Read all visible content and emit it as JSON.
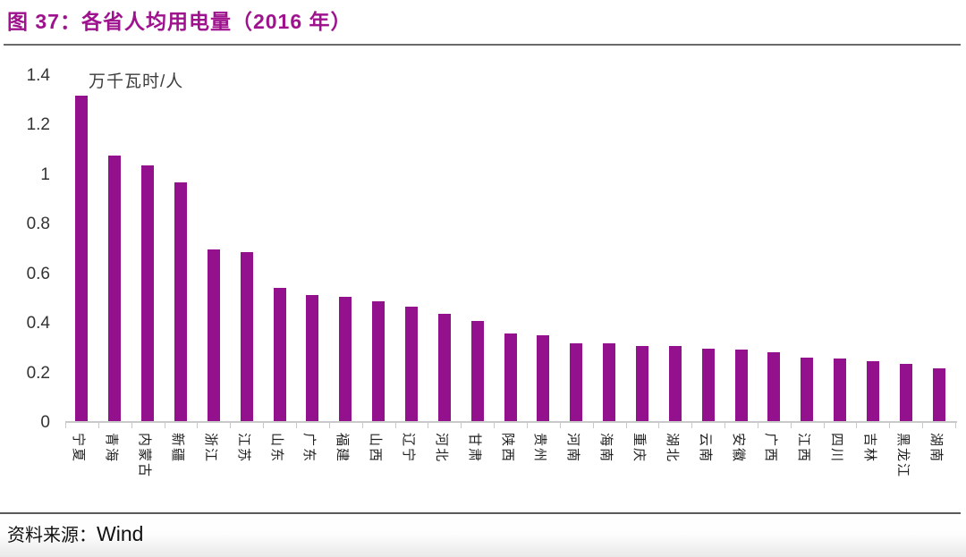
{
  "header": {
    "title": "图 37：各省人均用电量（2016 年）"
  },
  "footer": {
    "source_prefix": "资料来源：",
    "source_value": "Wind"
  },
  "chart_data": {
    "type": "bar",
    "title": "各省人均用电量（2016 年）",
    "unit_label": "万千瓦时/人",
    "categories": [
      "宁夏",
      "青海",
      "内蒙古",
      "新疆",
      "浙江",
      "江苏",
      "山东",
      "广东",
      "福建",
      "山西",
      "辽宁",
      "河北",
      "甘肃",
      "陕西",
      "贵州",
      "河南",
      "海南",
      "重庆",
      "湖北",
      "云南",
      "安徽",
      "广西",
      "江西",
      "四川",
      "吉林",
      "黑龙江",
      "湖南"
    ],
    "values": [
      1.32,
      1.08,
      1.04,
      0.97,
      0.7,
      0.69,
      0.545,
      0.515,
      0.51,
      0.49,
      0.47,
      0.44,
      0.41,
      0.36,
      0.355,
      0.32,
      0.32,
      0.31,
      0.31,
      0.3,
      0.295,
      0.285,
      0.265,
      0.26,
      0.25,
      0.24,
      0.22
    ],
    "ylim": [
      0,
      1.4
    ],
    "ytick_labels": [
      "1.4",
      "1.2",
      "1",
      "0.8",
      "0.6",
      "0.4",
      "0.2",
      "0"
    ],
    "ytick_values": [
      1.4,
      1.2,
      1,
      0.8,
      0.6,
      0.4,
      0.2,
      0
    ],
    "grid": false,
    "legend": "none",
    "bar_color": "#93118d",
    "title_color": "#9e128e",
    "axis_color": "#c9c9c9",
    "label_color": "#222222"
  }
}
